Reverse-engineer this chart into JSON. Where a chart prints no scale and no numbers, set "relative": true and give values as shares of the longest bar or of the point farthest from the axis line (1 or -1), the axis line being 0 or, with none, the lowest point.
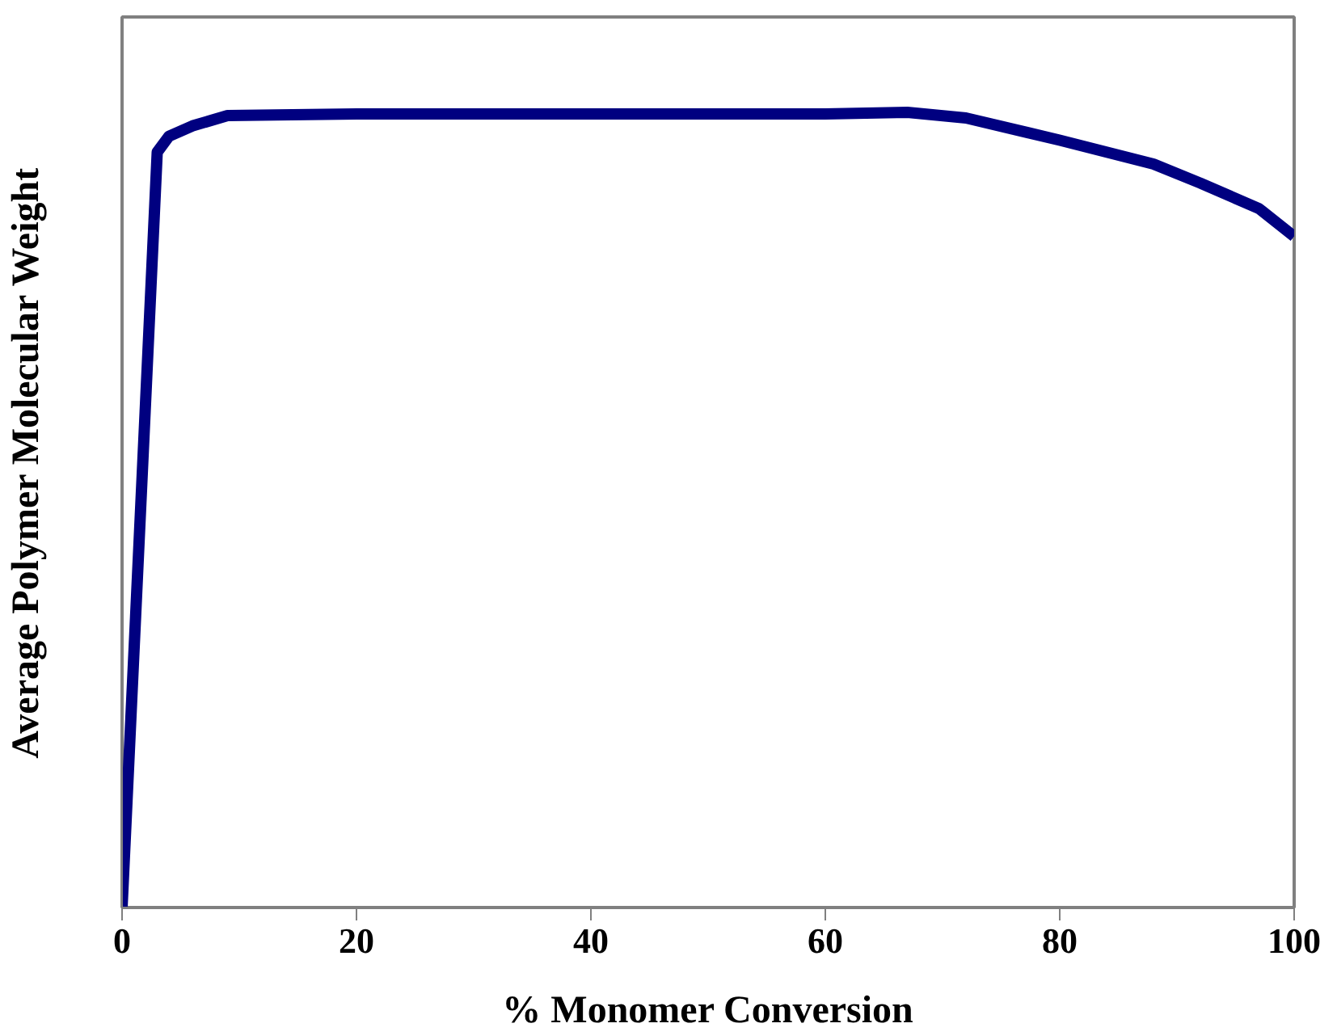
{
  "chart_data": {
    "type": "line",
    "xlabel": "% Monomer Conversion",
    "ylabel": "Average Polymer Molecular Weight",
    "relative": true,
    "x": [
      0,
      3,
      4,
      6,
      9,
      20,
      40,
      60,
      67,
      72,
      80,
      88,
      92,
      97,
      100
    ],
    "series": [
      {
        "color": "#000080",
        "values": [
          0,
          0.95,
          0.97,
          0.983,
          0.996,
          0.998,
          0.998,
          0.998,
          1,
          0.993,
          0.965,
          0.935,
          0.911,
          0.879,
          0.844
        ]
      }
    ],
    "xlim": [
      0,
      100
    ],
    "xticks": [
      0,
      20,
      40,
      60,
      80,
      100
    ],
    "grid": false,
    "marker": "none",
    "line_style": "solid"
  }
}
